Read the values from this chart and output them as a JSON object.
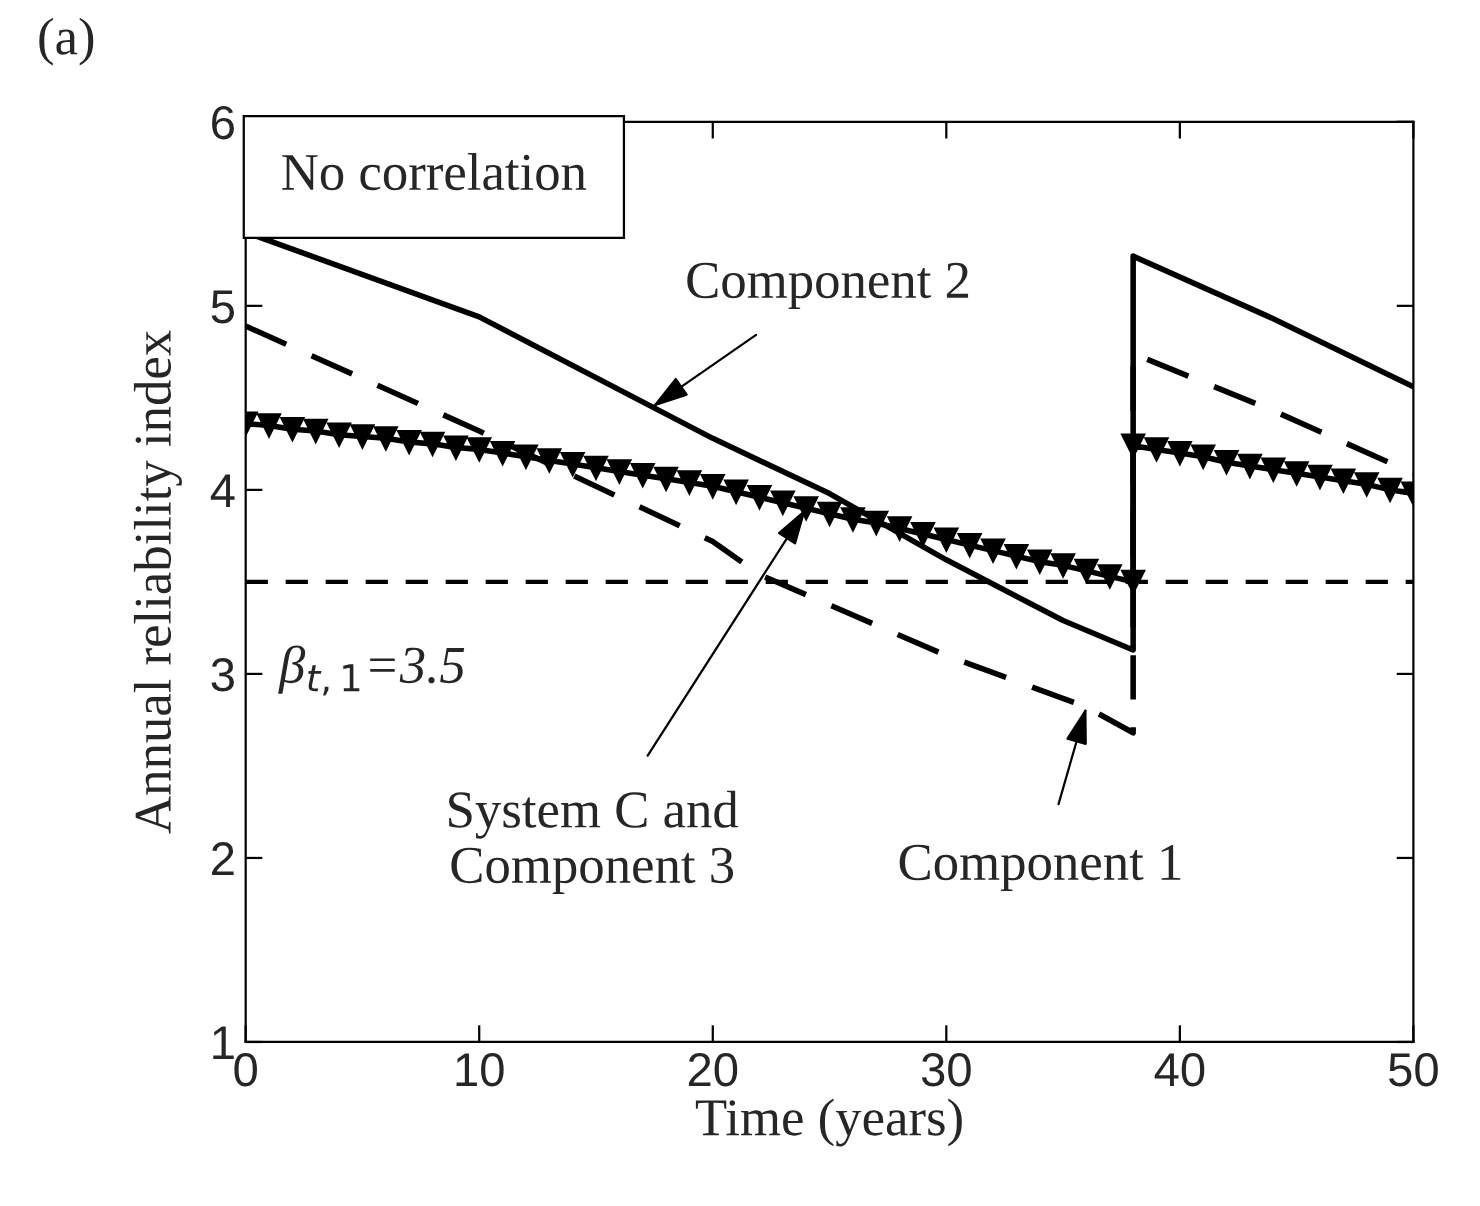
{
  "chart_data": {
    "type": "line",
    "xlabel": "Time (years)",
    "ylabel": "Annual reliability index",
    "xlim": [
      0,
      50
    ],
    "ylim": [
      1,
      6
    ],
    "xticks": [
      0,
      10,
      20,
      30,
      40,
      50
    ],
    "yticks": [
      1,
      2,
      3,
      4,
      5,
      6
    ],
    "grid": false,
    "legend": false,
    "series": [
      {
        "color": "#000000",
        "line_style": "solid",
        "marker": "none",
        "x": [
          0,
          10,
          20,
          25,
          30,
          35,
          38,
          38,
          44,
          50
        ],
        "values": [
          5.4,
          4.94,
          4.28,
          3.98,
          3.62,
          3.29,
          3.13,
          5.27,
          4.93,
          4.56
        ]
      },
      {
        "color": "#000000",
        "line_style": "dashed",
        "marker": "none",
        "x": [
          0,
          10,
          20,
          22,
          30,
          36,
          38,
          38,
          44,
          50
        ],
        "values": [
          4.89,
          4.32,
          3.72,
          3.54,
          3.1,
          2.82,
          2.68,
          4.74,
          4.43,
          4.09
        ]
      },
      {
        "color": "#000000",
        "line_style": "solid",
        "marker": "triangle",
        "x": [
          0,
          1,
          2,
          3,
          4,
          5,
          6,
          7,
          8,
          9,
          10,
          11,
          12,
          13,
          14,
          15,
          16,
          17,
          18,
          19,
          20,
          21,
          22,
          23,
          24,
          25,
          26,
          27,
          28,
          29,
          30,
          31,
          32,
          33,
          34,
          35,
          36,
          37,
          38,
          38,
          39,
          40,
          41,
          42,
          43,
          44,
          45,
          46,
          47,
          48,
          49,
          50
        ],
        "values": [
          4.36,
          4.35,
          4.33,
          4.32,
          4.3,
          4.29,
          4.28,
          4.26,
          4.25,
          4.23,
          4.22,
          4.2,
          4.18,
          4.16,
          4.14,
          4.12,
          4.1,
          4.08,
          4.06,
          4.04,
          4.02,
          3.99,
          3.96,
          3.93,
          3.9,
          3.87,
          3.84,
          3.82,
          3.79,
          3.76,
          3.73,
          3.7,
          3.67,
          3.64,
          3.61,
          3.59,
          3.56,
          3.53,
          3.5,
          4.24,
          4.22,
          4.2,
          4.18,
          4.15,
          4.13,
          4.11,
          4.09,
          4.07,
          4.05,
          4.03,
          4.0,
          3.98
        ]
      }
    ],
    "ref_lines": [
      {
        "axis": "y",
        "value": 3.5,
        "label": "β$_{t,1}$=3.5",
        "color": "#000000",
        "line_style": "dashed"
      }
    ],
    "annotations": [
      "(a)",
      "No correlation",
      {
        "text": "Component 2",
        "x": 17.4,
        "y": 4.45
      },
      {
        "text": "System C and\nComponent 3",
        "x": 24,
        "y": 3.9
      },
      {
        "text": "Component 1",
        "x": 36,
        "y": 2.82
      }
    ]
  }
}
